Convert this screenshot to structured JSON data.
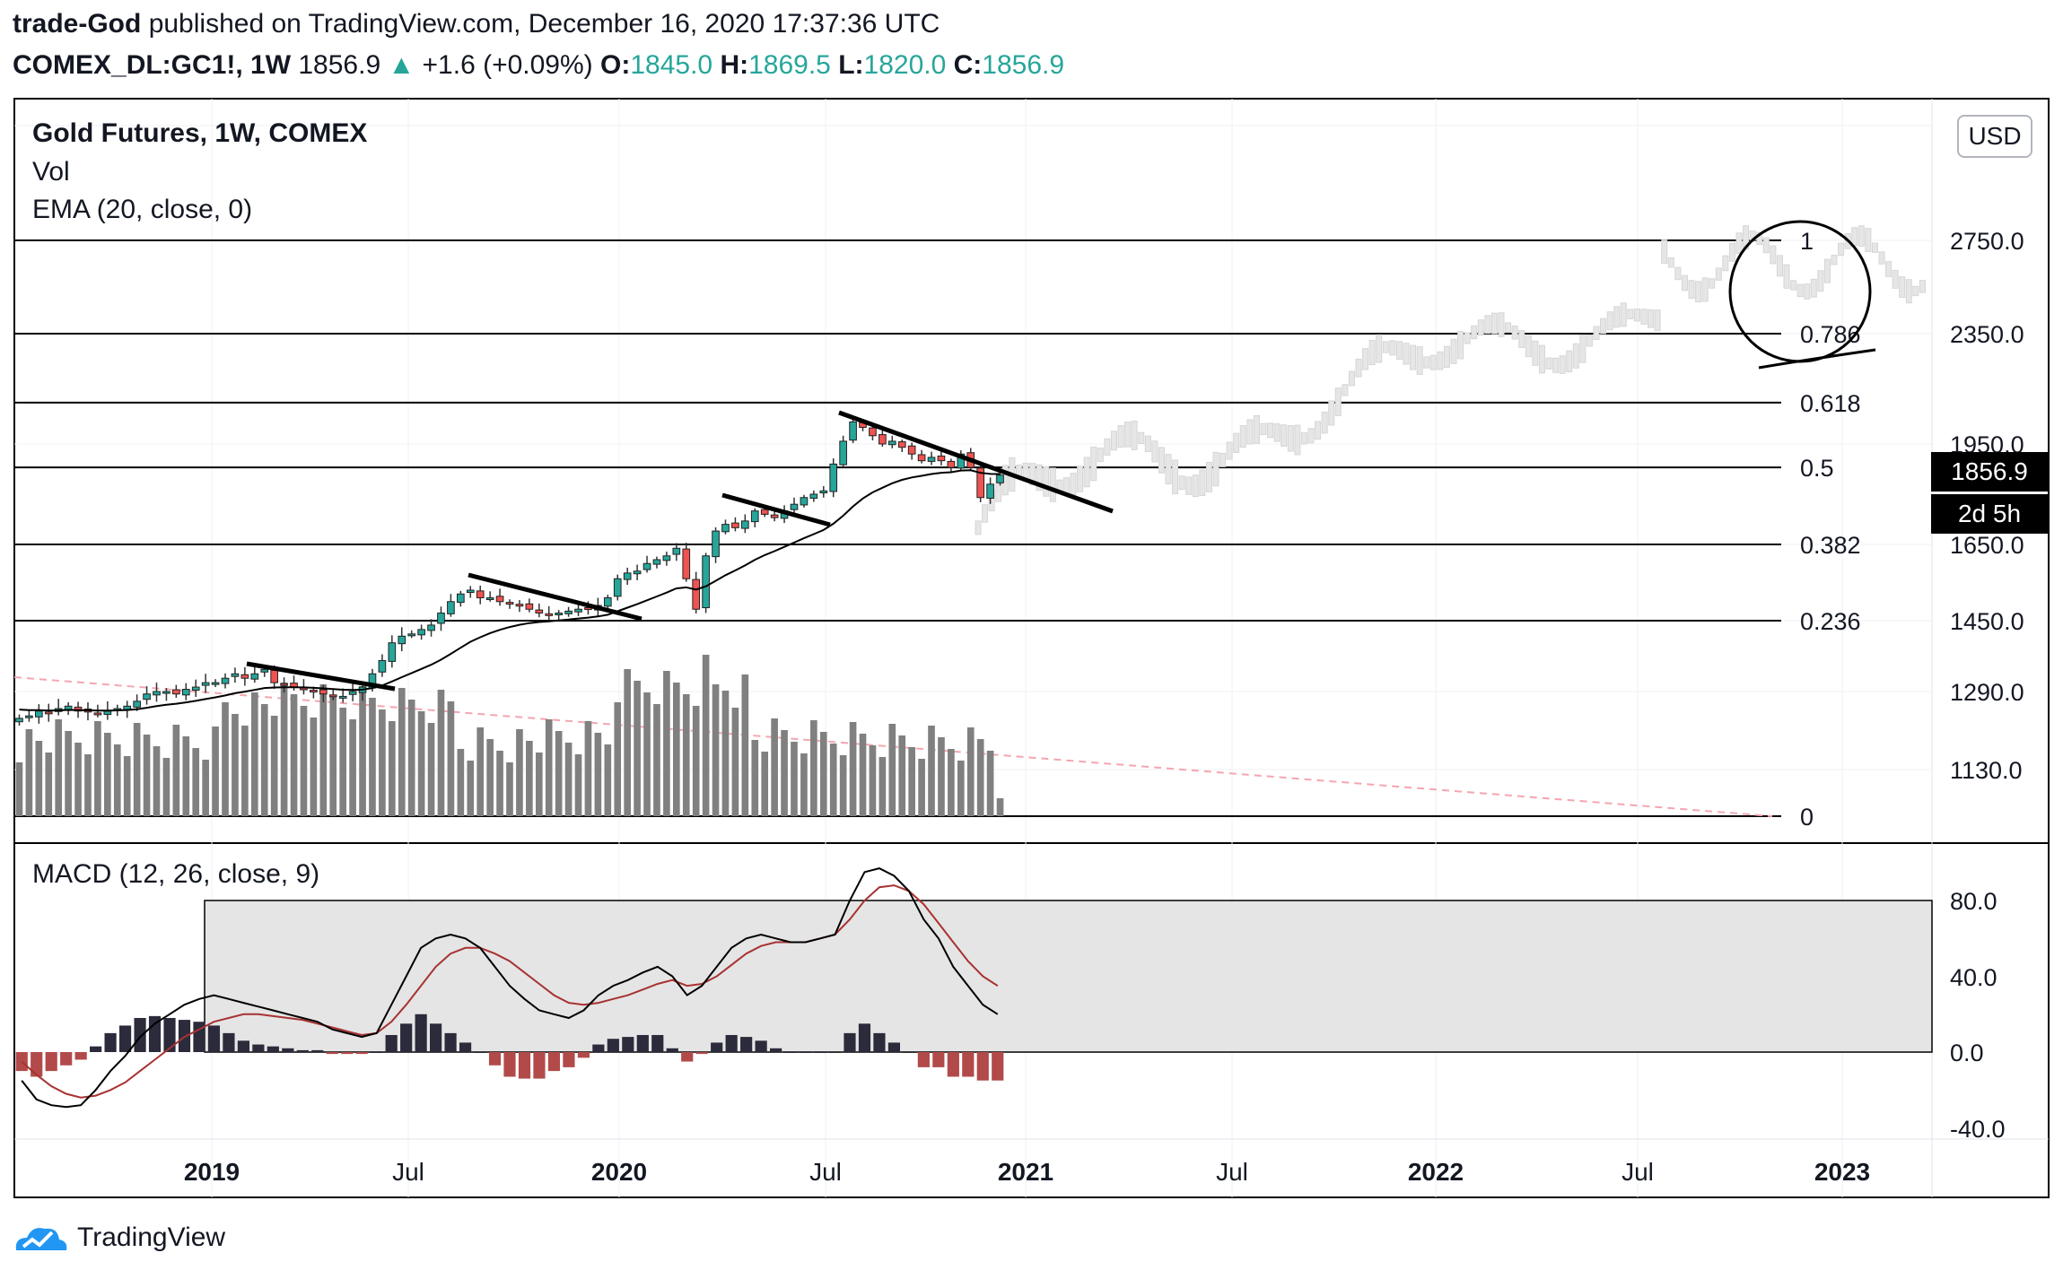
{
  "header": {
    "author": "trade-God",
    "published_text": "published on TradingView.com, December 16, 2020 17:37:36 UTC",
    "symbol": "COMEX_DL:GC1!, 1W",
    "last": "1856.9",
    "change": "+1.6 (+0.09%)",
    "open_label": "O:",
    "open": "1845.0",
    "high_label": "H:",
    "high": "1869.5",
    "low_label": "L:",
    "low": "1820.0",
    "close_label": "C:",
    "close": "1856.9"
  },
  "legend": {
    "title": "Gold Futures, 1W, COMEX",
    "vol": "Vol",
    "ema": "EMA (20, close, 0)",
    "macd": "MACD (12, 26, close, 9)"
  },
  "currency": "USD",
  "last_price_tag": "1856.9",
  "countdown_tag": "2d 5h",
  "footer": {
    "brand": "TradingView",
    "icon": "tradingview-logo-icon"
  },
  "colors": {
    "bull": "#26a69a",
    "bear": "#ef5350",
    "volume": "#808080",
    "ema": "#000000",
    "macd": "#000000",
    "signal": "#a83232",
    "hist_pos": "#2b2b3b",
    "hist_neg": "#b24a4a"
  },
  "chart_data": {
    "type": "candlestick",
    "timeframe": "1W",
    "price_axis": {
      "ticks": [
        "1130.0",
        "1290.0",
        "1450.0",
        "1650.0",
        "1950.0",
        "2350.0",
        "2750.0"
      ],
      "range": [
        1020,
        3300
      ]
    },
    "time_axis": {
      "ticks": [
        "2019",
        "Jul",
        "2020",
        "Jul",
        "2021",
        "Jul",
        "2022",
        "Jul",
        "2023"
      ]
    },
    "fib_levels": [
      {
        "label": "1",
        "value": 2750
      },
      {
        "label": "0.786",
        "value": 2350
      },
      {
        "label": "0.618",
        "value": 2100
      },
      {
        "label": "0.5",
        "value": 1880
      },
      {
        "label": "0.382",
        "value": 1650
      },
      {
        "label": "0.236",
        "value": 1450
      },
      {
        "label": "0",
        "value": 1070
      }
    ],
    "weekly_close_approx": [
      1235,
      1240,
      1250,
      1245,
      1255,
      1260,
      1250,
      1248,
      1245,
      1250,
      1255,
      1260,
      1270,
      1285,
      1290,
      1290,
      1285,
      1295,
      1300,
      1310,
      1310,
      1320,
      1330,
      1320,
      1330,
      1340,
      1310,
      1305,
      1300,
      1295,
      1290,
      1285,
      1280,
      1280,
      1290,
      1300,
      1330,
      1360,
      1400,
      1415,
      1420,
      1430,
      1440,
      1470,
      1500,
      1520,
      1530,
      1510,
      1510,
      1500,
      1495,
      1490,
      1480,
      1470,
      1465,
      1470,
      1475,
      1480,
      1480,
      1490,
      1510,
      1560,
      1575,
      1580,
      1600,
      1610,
      1620,
      1640,
      1560,
      1480,
      1620,
      1690,
      1710,
      1700,
      1720,
      1750,
      1740,
      1730,
      1750,
      1770,
      1790,
      1800,
      1810,
      1890,
      1960,
      2030,
      2010,
      1980,
      1950,
      1960,
      1940,
      1920,
      1900,
      1910,
      1900,
      1880,
      1920,
      1880,
      1790,
      1830,
      1857
    ],
    "volume_note": "Vol histogram per week",
    "ema_period": 20,
    "macd": {
      "axis_ticks": [
        "80.0",
        "40.0",
        "0.0",
        "-40.0"
      ],
      "range": [
        -45,
        100
      ],
      "macd_line_approx": [
        -15,
        -25,
        -28,
        -29,
        -28,
        -20,
        -10,
        -2,
        8,
        15,
        20,
        25,
        28,
        30,
        28,
        26,
        24,
        22,
        20,
        18,
        16,
        12,
        10,
        8,
        10,
        25,
        40,
        55,
        60,
        62,
        60,
        55,
        45,
        35,
        28,
        22,
        20,
        18,
        22,
        30,
        35,
        38,
        42,
        45,
        40,
        30,
        35,
        45,
        55,
        60,
        62,
        60,
        58,
        58,
        60,
        62,
        80,
        95,
        97,
        93,
        85,
        70,
        60,
        45,
        35,
        25,
        20
      ],
      "signal_line_approx": [
        -5,
        -12,
        -18,
        -22,
        -24,
        -23,
        -20,
        -16,
        -10,
        -4,
        2,
        8,
        12,
        16,
        18,
        20,
        20,
        19,
        18,
        17,
        15,
        13,
        11,
        9,
        10,
        16,
        25,
        35,
        45,
        52,
        55,
        55,
        52,
        48,
        42,
        36,
        30,
        26,
        25,
        26,
        28,
        30,
        33,
        36,
        38,
        35,
        36,
        40,
        46,
        52,
        56,
        58,
        58,
        58,
        60,
        62,
        70,
        80,
        87,
        88,
        85,
        78,
        68,
        58,
        48,
        40,
        35
      ],
      "hist_approx": [
        -10,
        -13,
        -10,
        -7,
        -4,
        3,
        10,
        14,
        18,
        19,
        18,
        17,
        16,
        14,
        10,
        6,
        4,
        3,
        2,
        1,
        1,
        -1,
        -1,
        -1,
        0,
        9,
        15,
        20,
        15,
        10,
        5,
        0,
        -7,
        -13,
        -14,
        -14,
        -10,
        -8,
        -3,
        4,
        7,
        8,
        9,
        9,
        2,
        -5,
        -1,
        5,
        9,
        8,
        6,
        2,
        0,
        0,
        0,
        0,
        10,
        15,
        10,
        5,
        0,
        -8,
        -8,
        -13,
        -13,
        -15,
        -15
      ]
    }
  }
}
